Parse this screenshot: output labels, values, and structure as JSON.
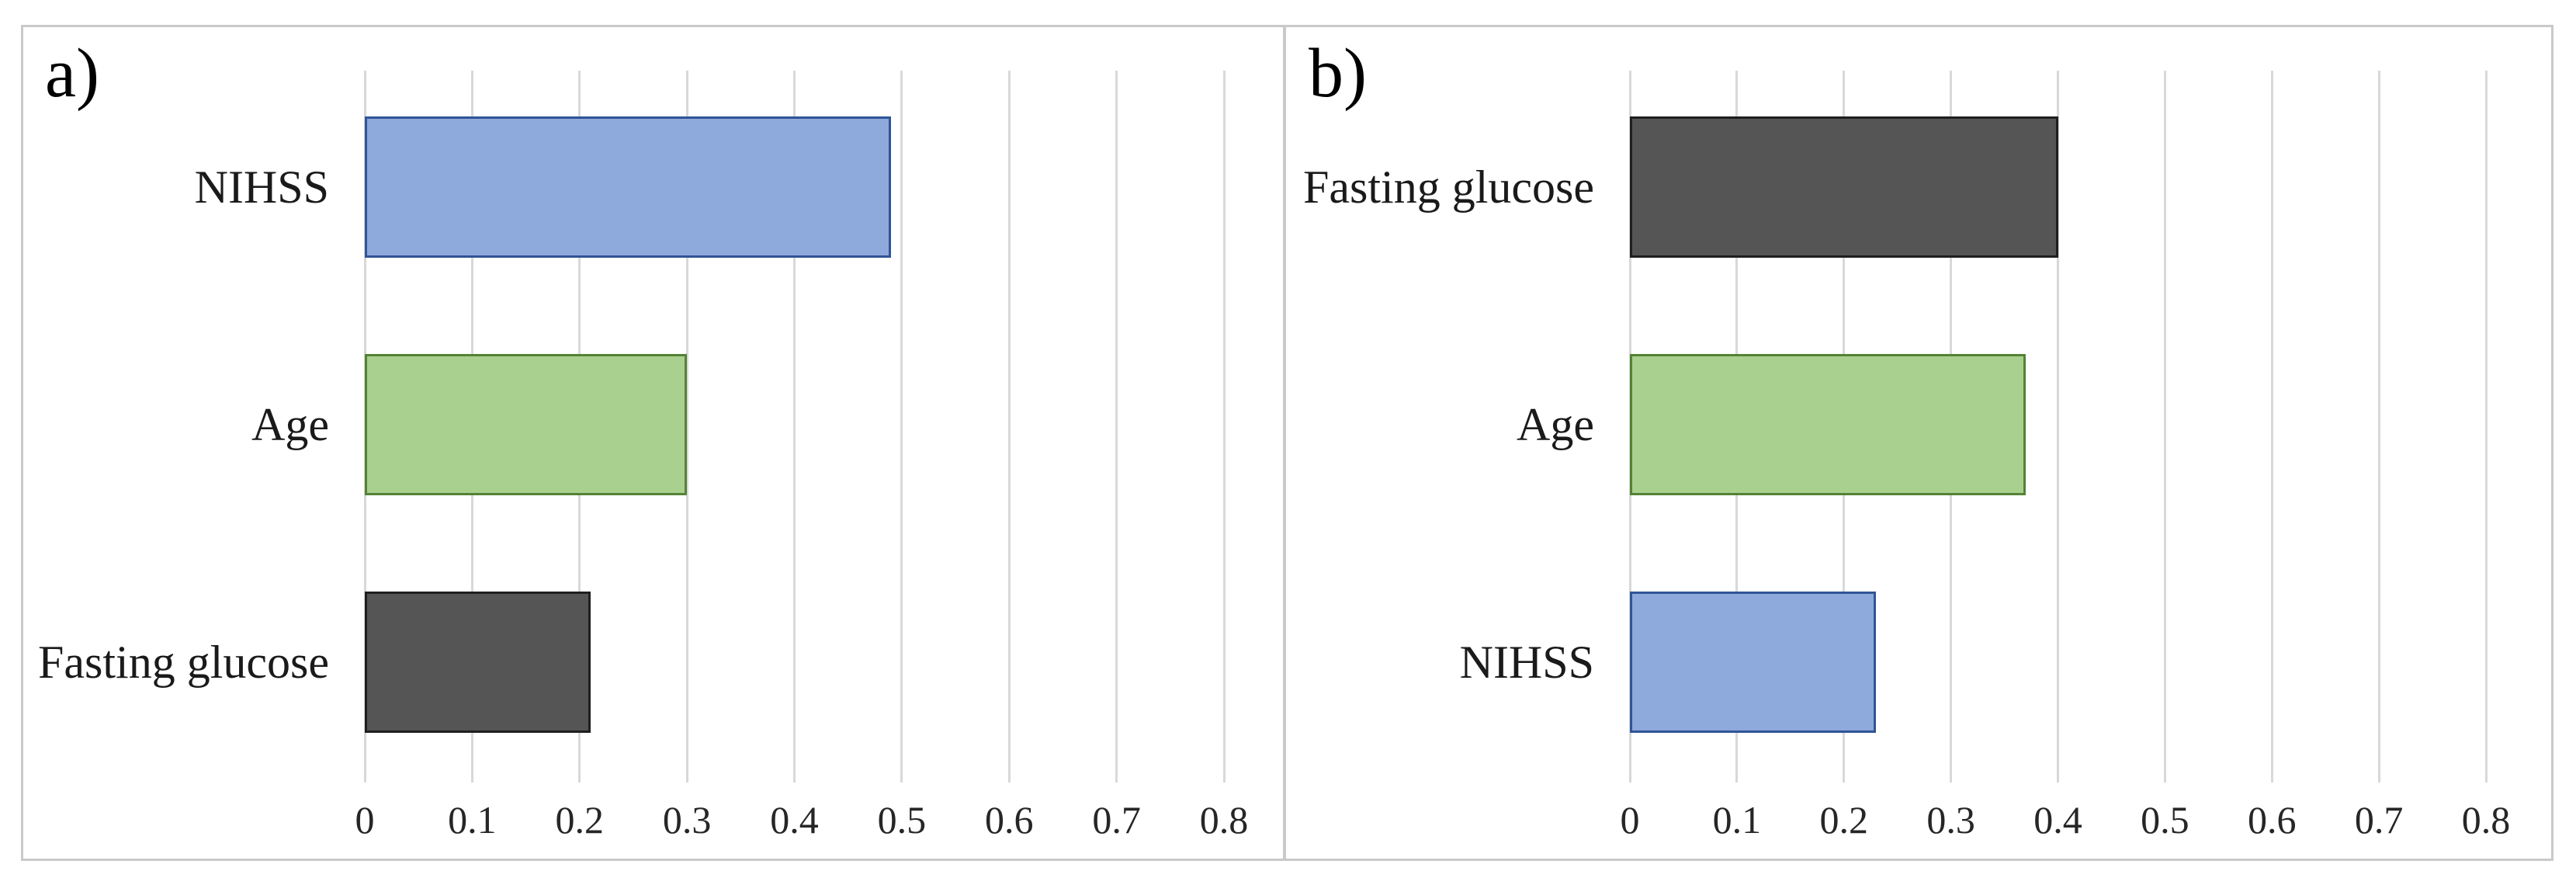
{
  "figure": {
    "description": "Two-panel horizontal bar chart figure, panels a) and b)",
    "background": "#FFFFFF",
    "frame_border_color": "#C9C9C9",
    "divider_color": "#C9C9C9",
    "gridline_color": "#D8D8D8",
    "text_color": "#1A1A1A"
  },
  "chart_data": [
    {
      "type": "bar",
      "orientation": "horizontal",
      "panel_label": "a)",
      "categories": [
        "NIHSS",
        "Age",
        "Fasting glucose"
      ],
      "values": [
        0.49,
        0.3,
        0.21
      ],
      "bar_colors": [
        {
          "name": "blue",
          "fill": "#8EA9DB",
          "border": "#2F5597"
        },
        {
          "name": "green",
          "fill": "#A9D08E",
          "border": "#548235"
        },
        {
          "name": "dark-gray",
          "fill": "#555555",
          "border": "#1F1F1F"
        }
      ],
      "xlim": [
        0,
        0.8
      ],
      "xtick_labels": [
        "0",
        "0.1",
        "0.2",
        "0.3",
        "0.4",
        "0.5",
        "0.6",
        "0.7",
        "0.8"
      ],
      "grid": true,
      "legend": false,
      "xlabel": "",
      "ylabel": ""
    },
    {
      "type": "bar",
      "orientation": "horizontal",
      "panel_label": "b)",
      "categories": [
        "Fasting glucose",
        "Age",
        "NIHSS"
      ],
      "values": [
        0.4,
        0.37,
        0.23
      ],
      "bar_colors": [
        {
          "name": "dark-gray",
          "fill": "#555555",
          "border": "#1F1F1F"
        },
        {
          "name": "green",
          "fill": "#A9D08E",
          "border": "#548235"
        },
        {
          "name": "blue",
          "fill": "#8EA9DB",
          "border": "#2F5597"
        }
      ],
      "xlim": [
        0,
        0.8
      ],
      "xtick_labels": [
        "0",
        "0.1",
        "0.2",
        "0.3",
        "0.4",
        "0.5",
        "0.6",
        "0.7",
        "0.8"
      ],
      "grid": true,
      "legend": false,
      "xlabel": "",
      "ylabel": ""
    }
  ]
}
